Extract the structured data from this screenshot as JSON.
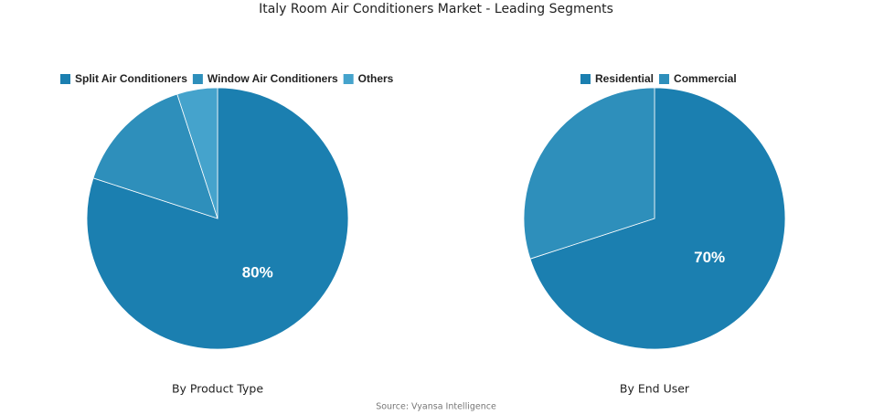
{
  "title": "Italy Room Air Conditioners Market - Leading Segments",
  "source": "Source: Vyansa Intelligence",
  "chart_data": [
    {
      "type": "pie",
      "title": "By Product Type",
      "categories": [
        "Split Air Conditioners",
        "Window Air Conditioners",
        "Others"
      ],
      "values": [
        80,
        15,
        5
      ],
      "value_labels": [
        "80%",
        null,
        null
      ],
      "colors": [
        "#1b7fb0",
        "#2e8fbb",
        "#45a3cc"
      ]
    },
    {
      "type": "pie",
      "title": "By End User",
      "categories": [
        "Residential",
        "Commercial"
      ],
      "values": [
        70,
        30
      ],
      "value_labels": [
        "70%",
        null
      ],
      "colors": [
        "#1b7fb0",
        "#2e8fbb"
      ]
    }
  ]
}
